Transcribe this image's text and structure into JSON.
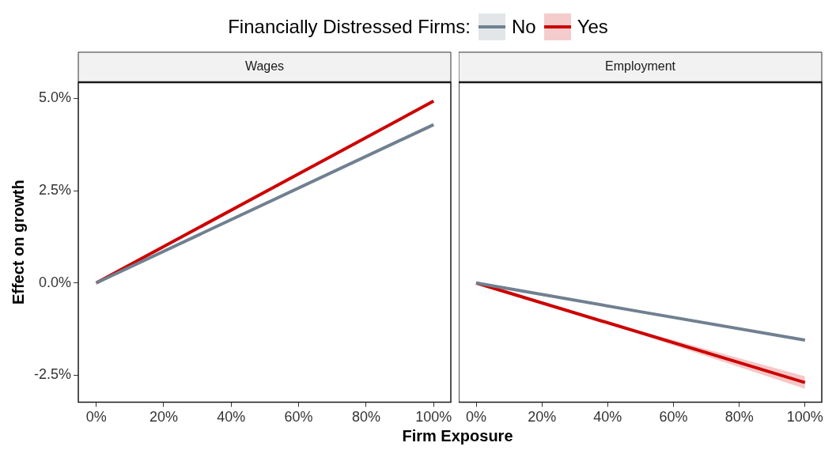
{
  "chart_data": [
    {
      "type": "line",
      "title": "Wages",
      "xlabel": "Firm Exposure",
      "ylabel": "Effect on growth",
      "legend_title": "Financially Distressed Firms:",
      "legend": "top",
      "line_style": "solid",
      "marker": "none",
      "grid": false,
      "xlim": [
        -5.3,
        105.1
      ],
      "xticks": [
        {
          "value": 0,
          "label": "0%"
        },
        {
          "value": 20,
          "label": "20%"
        },
        {
          "value": 40,
          "label": "40%"
        },
        {
          "value": 60,
          "label": "60%"
        },
        {
          "value": 80,
          "label": "80%"
        },
        {
          "value": 100,
          "label": "100%"
        }
      ],
      "ylim": [
        -3.23,
        5.44
      ],
      "yticks": [
        {
          "value": -2.5,
          "label": "-2.5%"
        },
        {
          "value": 0,
          "label": "0.0%"
        },
        {
          "value": 2.5,
          "label": "2.5%"
        },
        {
          "value": 5,
          "label": "5.0%"
        }
      ],
      "x": [
        0,
        100
      ],
      "series": [
        {
          "name": "No",
          "color": "#708090",
          "values": [
            0,
            4.29
          ]
        },
        {
          "name": "Yes",
          "color": "#cc0000",
          "values": [
            0,
            4.93
          ]
        }
      ]
    },
    {
      "type": "line",
      "title": "Employment",
      "tick_labels": "x",
      "line_style": "solid",
      "marker": "none",
      "grid": false,
      "xlim": [
        -5.3,
        105.1
      ],
      "xticks": [
        {
          "value": 0,
          "label": "0%"
        },
        {
          "value": 20,
          "label": "20%"
        },
        {
          "value": 40,
          "label": "40%"
        },
        {
          "value": 60,
          "label": "60%"
        },
        {
          "value": 80,
          "label": "80%"
        },
        {
          "value": 100,
          "label": "100%"
        }
      ],
      "ylim": [
        -3.23,
        5.44
      ],
      "x": [
        0,
        50,
        100
      ],
      "series": [
        {
          "color": "#708090",
          "values": [
            0,
            -0.78,
            -1.55
          ]
        },
        {
          "color": "#cc0000",
          "values": [
            0,
            -1.35,
            -2.7
          ],
          "lower": [
            0,
            -1.4,
            -2.87
          ],
          "upper": [
            0,
            -1.3,
            -2.53
          ]
        }
      ]
    }
  ]
}
